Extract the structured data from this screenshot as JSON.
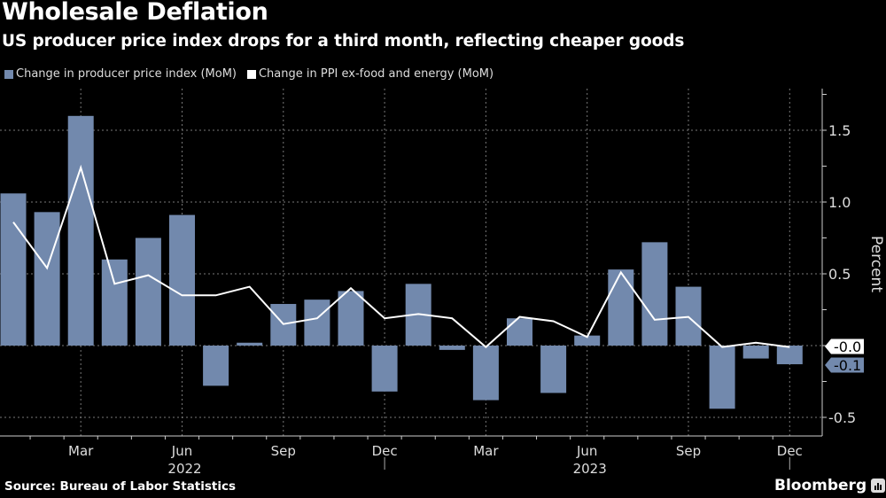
{
  "header": {
    "title": "Wholesale Deflation",
    "subtitle": "US producer price index drops for a third month, reflecting cheaper goods"
  },
  "footer": {
    "source": "Source: Bureau of Labor Statistics",
    "brand": "Bloomberg"
  },
  "colors": {
    "background": "#000000",
    "bar": "#7289ad",
    "line": "#ffffff",
    "grid": "#777777",
    "axis": "#cccccc"
  },
  "chart_data": {
    "type": "bar",
    "title": "Wholesale Deflation",
    "subtitle": "US producer price index drops for a third month, reflecting cheaper goods",
    "xlabel": "",
    "ylabel": "Percent",
    "ylim": [
      -0.6,
      1.8
    ],
    "yticks": [
      -0.5,
      0.5,
      1.0,
      1.5
    ],
    "ytick_labels": [
      "-0.5",
      "0.5",
      "1.0",
      "1.5"
    ],
    "grid": true,
    "legend_position": "top-left",
    "x": [
      "Jan 2022",
      "Feb 2022",
      "Mar 2022",
      "Apr 2022",
      "May 2022",
      "Jun 2022",
      "Jul 2022",
      "Aug 2022",
      "Sep 2022",
      "Oct 2022",
      "Nov 2022",
      "Dec 2022",
      "Jan 2023",
      "Feb 2023",
      "Mar 2023",
      "Apr 2023",
      "May 2023",
      "Jun 2023",
      "Jul 2023",
      "Aug 2023",
      "Sep 2023",
      "Oct 2023",
      "Nov 2023",
      "Dec 2023"
    ],
    "xtick_labels": [
      {
        "index": 2,
        "label": "Mar"
      },
      {
        "index": 5,
        "label": "Jun"
      },
      {
        "index": 8,
        "label": "Sep"
      },
      {
        "index": 11,
        "label": "Dec"
      },
      {
        "index": 14,
        "label": "Mar"
      },
      {
        "index": 17,
        "label": "Jun"
      },
      {
        "index": 20,
        "label": "Sep"
      },
      {
        "index": 23,
        "label": "Dec"
      }
    ],
    "year_labels": [
      {
        "index": 5,
        "label": "2022"
      },
      {
        "index": 17,
        "label": "2023"
      }
    ],
    "year_dividers": [
      11.5,
      23.5
    ],
    "series": [
      {
        "name": "Change in producer price index (MoM)",
        "type": "bar",
        "values": [
          1.06,
          0.93,
          1.6,
          0.6,
          0.75,
          0.91,
          -0.28,
          0.02,
          0.29,
          0.32,
          0.38,
          -0.32,
          0.43,
          -0.03,
          -0.38,
          0.19,
          -0.33,
          0.07,
          0.53,
          0.72,
          0.41,
          -0.44,
          -0.09,
          -0.13
        ],
        "end_label": "-0.1"
      },
      {
        "name": "Change in PPI ex-food and energy (MoM)",
        "type": "line",
        "values": [
          0.86,
          0.54,
          1.24,
          0.43,
          0.49,
          0.35,
          0.35,
          0.41,
          0.15,
          0.19,
          0.4,
          0.19,
          0.22,
          0.19,
          -0.01,
          0.2,
          0.17,
          0.06,
          0.51,
          0.18,
          0.2,
          -0.01,
          0.02,
          -0.01
        ],
        "end_label": "-0.0"
      }
    ]
  }
}
